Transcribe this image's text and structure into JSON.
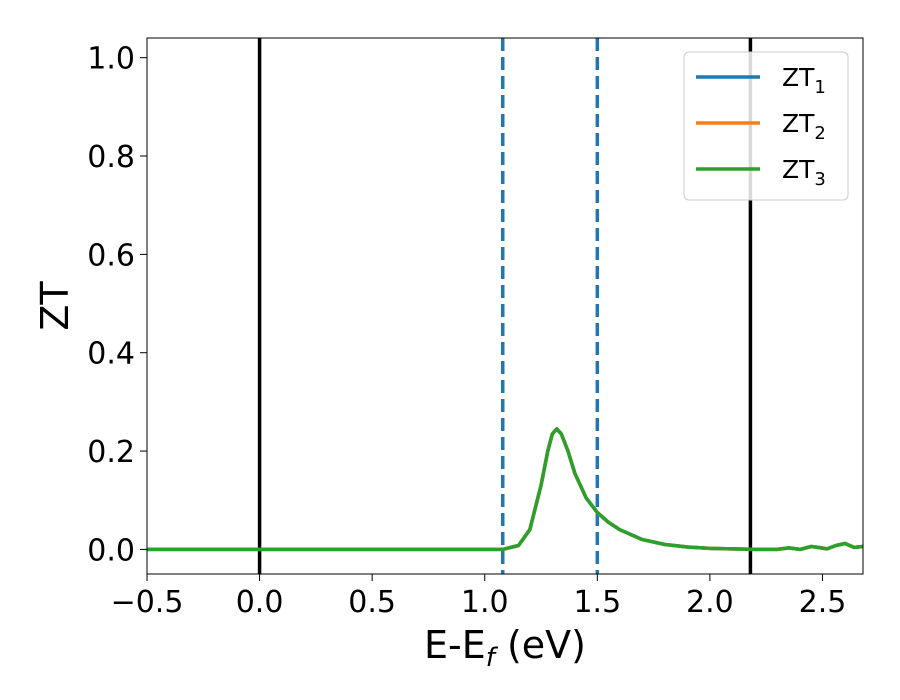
{
  "chart_data": {
    "type": "line",
    "xlabel": "E-E",
    "xlabel_sub": "f",
    "xlabel_unit": " (eV)",
    "ylabel": "ZT",
    "xlim": [
      -0.5,
      2.68
    ],
    "ylim": [
      -0.05,
      1.04
    ],
    "xticks": [
      -0.5,
      0.0,
      0.5,
      1.0,
      1.5,
      2.0,
      2.5
    ],
    "xtick_labels": [
      "−0.5",
      "0.0",
      "0.5",
      "1.0",
      "1.5",
      "2.0",
      "2.5"
    ],
    "yticks": [
      0.0,
      0.2,
      0.4,
      0.6,
      0.8,
      1.0
    ],
    "ytick_labels": [
      "0.0",
      "0.2",
      "0.4",
      "0.6",
      "0.8",
      "1.0"
    ],
    "grid": false,
    "legend_position": "top-right",
    "series": [
      {
        "name": "ZT",
        "sub": "1",
        "color": "#1f77b4",
        "x": [
          -0.5,
          1.08,
          1.15,
          1.2,
          1.25,
          1.28,
          1.3,
          1.32,
          1.34,
          1.37,
          1.4,
          1.45,
          1.5,
          1.55,
          1.6,
          1.7,
          1.8,
          1.9,
          2.0,
          2.1,
          2.2,
          2.3,
          2.35,
          2.4,
          2.45,
          2.48,
          2.52,
          2.56,
          2.6,
          2.64,
          2.68
        ],
        "y": [
          0.0,
          0.0,
          0.008,
          0.04,
          0.13,
          0.2,
          0.235,
          0.245,
          0.235,
          0.2,
          0.155,
          0.105,
          0.075,
          0.055,
          0.04,
          0.02,
          0.01,
          0.005,
          0.002,
          0.001,
          0.0,
          0.0,
          0.003,
          0.0,
          0.006,
          0.004,
          0.001,
          0.008,
          0.012,
          0.004,
          0.006
        ]
      },
      {
        "name": "ZT",
        "sub": "2",
        "color": "#ff7f0e",
        "x": [
          -0.5,
          1.08,
          1.15,
          1.2,
          1.25,
          1.28,
          1.3,
          1.32,
          1.34,
          1.37,
          1.4,
          1.45,
          1.5,
          1.55,
          1.6,
          1.7,
          1.8,
          1.9,
          2.0,
          2.1,
          2.2,
          2.3,
          2.35,
          2.4,
          2.45,
          2.48,
          2.52,
          2.56,
          2.6,
          2.64,
          2.68
        ],
        "y": [
          0.0,
          0.0,
          0.008,
          0.04,
          0.13,
          0.2,
          0.235,
          0.245,
          0.235,
          0.2,
          0.155,
          0.105,
          0.075,
          0.055,
          0.04,
          0.02,
          0.01,
          0.005,
          0.002,
          0.001,
          0.0,
          0.0,
          0.003,
          0.0,
          0.006,
          0.004,
          0.001,
          0.008,
          0.012,
          0.004,
          0.006
        ]
      },
      {
        "name": "ZT",
        "sub": "3",
        "color": "#2ca02c",
        "x": [
          -0.5,
          1.08,
          1.15,
          1.2,
          1.25,
          1.28,
          1.3,
          1.32,
          1.34,
          1.37,
          1.4,
          1.45,
          1.5,
          1.55,
          1.6,
          1.7,
          1.8,
          1.9,
          2.0,
          2.1,
          2.2,
          2.3,
          2.35,
          2.4,
          2.45,
          2.48,
          2.52,
          2.56,
          2.6,
          2.64,
          2.68
        ],
        "y": [
          0.0,
          0.0,
          0.008,
          0.04,
          0.13,
          0.2,
          0.235,
          0.245,
          0.235,
          0.2,
          0.155,
          0.105,
          0.075,
          0.055,
          0.04,
          0.02,
          0.01,
          0.005,
          0.002,
          0.001,
          0.0,
          0.0,
          0.003,
          0.0,
          0.006,
          0.004,
          0.001,
          0.008,
          0.012,
          0.004,
          0.006
        ]
      }
    ],
    "vlines": [
      {
        "x": 0.0,
        "style": "solid",
        "color": "#000000"
      },
      {
        "x": 2.18,
        "style": "solid",
        "color": "#000000"
      },
      {
        "x": 1.08,
        "style": "dashed",
        "color": "#1f77b4"
      },
      {
        "x": 1.5,
        "style": "dashed",
        "color": "#1f77b4"
      }
    ]
  }
}
